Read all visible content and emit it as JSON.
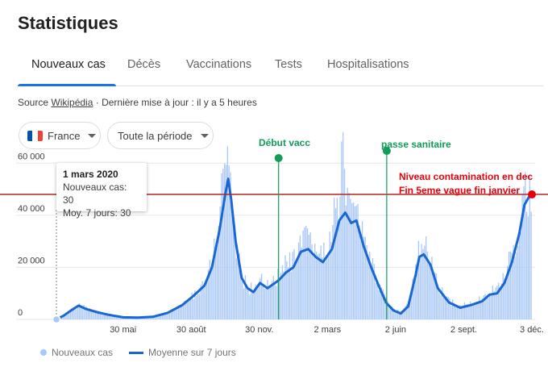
{
  "page": {
    "title": "Statistiques"
  },
  "tabs": [
    "Nouveaux cas",
    "Décès",
    "Vaccinations",
    "Tests",
    "Hospitalisations"
  ],
  "source": {
    "prefix": "Source",
    "link": "Wikipédia",
    "suffix": "· Dernière mise à jour : il y a 5 heures"
  },
  "filters": {
    "country": "France",
    "period": "Toute la période"
  },
  "tooltip": {
    "date": "1 mars 2020",
    "cases": "Nouveaux cas: 30",
    "avg": "Moy. 7 jours: 30"
  },
  "annotations": {
    "vacc": "Début vacc",
    "pass": "passe sanitaire",
    "level_line1": "Niveau contamination en dec",
    "level_line2": "Fin 5eme vague fin janvier",
    "vacc_color": "#0f9d58",
    "level_color": "#e8000b"
  },
  "legend": {
    "bars": "Nouveaux cas",
    "line": "Moyenne sur 7 jours"
  },
  "colors": {
    "bars": "#a8c7fa",
    "line": "#1967d2",
    "accent": "#1a73e8",
    "grid": "#e6e6e6",
    "ref_line": "#b3261e"
  },
  "chart_data": {
    "type": "line",
    "ylim": [
      0,
      70000
    ],
    "yticks": [
      0,
      20000,
      40000,
      60000
    ],
    "ytick_labels": [
      "0",
      "20 000",
      "40 000",
      "60 000"
    ],
    "xtick_labels": [
      "30 mai",
      "30 août",
      "30 nov.",
      "2 mars",
      "2 juin",
      "2 sept.",
      "3 déc."
    ],
    "xtick_days": [
      90,
      182,
      274,
      366,
      458,
      550,
      642
    ],
    "x_max_day": 642,
    "reference_level": 48000,
    "annotation_days": {
      "vacc": 300,
      "pass": 446
    },
    "series": [
      {
        "name": "Moyenne sur 7 jours",
        "points": [
          [
            0,
            30
          ],
          [
            10,
            1500
          ],
          [
            20,
            3500
          ],
          [
            30,
            5300
          ],
          [
            40,
            4000
          ],
          [
            55,
            2800
          ],
          [
            70,
            1800
          ],
          [
            90,
            800
          ],
          [
            110,
            700
          ],
          [
            130,
            1000
          ],
          [
            150,
            2500
          ],
          [
            170,
            5500
          ],
          [
            185,
            9000
          ],
          [
            200,
            13000
          ],
          [
            210,
            20000
          ],
          [
            220,
            34000
          ],
          [
            228,
            48000
          ],
          [
            232,
            54000
          ],
          [
            236,
            46000
          ],
          [
            242,
            30000
          ],
          [
            250,
            16000
          ],
          [
            258,
            12000
          ],
          [
            266,
            10500
          ],
          [
            275,
            14000
          ],
          [
            285,
            12000
          ],
          [
            300,
            15000
          ],
          [
            310,
            18000
          ],
          [
            320,
            20000
          ],
          [
            330,
            26000
          ],
          [
            340,
            27000
          ],
          [
            350,
            24000
          ],
          [
            360,
            22000
          ],
          [
            372,
            27000
          ],
          [
            382,
            38000
          ],
          [
            390,
            41000
          ],
          [
            398,
            37000
          ],
          [
            405,
            38000
          ],
          [
            415,
            28000
          ],
          [
            425,
            20000
          ],
          [
            435,
            13000
          ],
          [
            445,
            6500
          ],
          [
            455,
            3500
          ],
          [
            465,
            2300
          ],
          [
            475,
            5000
          ],
          [
            485,
            17000
          ],
          [
            490,
            24000
          ],
          [
            496,
            25000
          ],
          [
            505,
            21000
          ],
          [
            515,
            12000
          ],
          [
            530,
            6500
          ],
          [
            545,
            4500
          ],
          [
            560,
            5500
          ],
          [
            575,
            7000
          ],
          [
            585,
            9500
          ],
          [
            595,
            10000
          ],
          [
            605,
            14000
          ],
          [
            615,
            22000
          ],
          [
            625,
            33000
          ],
          [
            632,
            44000
          ],
          [
            638,
            47000
          ],
          [
            642,
            49000
          ]
        ]
      },
      {
        "name": "Nouveaux cas",
        "points": [
          [
            0,
            30
          ],
          [
            10,
            1500
          ],
          [
            20,
            3500
          ],
          [
            30,
            5800
          ],
          [
            40,
            4200
          ],
          [
            55,
            2800
          ],
          [
            70,
            1800
          ],
          [
            90,
            800
          ],
          [
            110,
            700
          ],
          [
            130,
            1000
          ],
          [
            150,
            2500
          ],
          [
            170,
            5500
          ],
          [
            185,
            9500
          ],
          [
            200,
            14000
          ],
          [
            210,
            22000
          ],
          [
            220,
            40000
          ],
          [
            225,
            58000
          ],
          [
            228,
            61000
          ],
          [
            232,
            66000
          ],
          [
            236,
            50000
          ],
          [
            242,
            30000
          ],
          [
            250,
            16000
          ],
          [
            258,
            13000
          ],
          [
            266,
            11000
          ],
          [
            275,
            16000
          ],
          [
            285,
            13000
          ],
          [
            300,
            17000
          ],
          [
            310,
            21000
          ],
          [
            320,
            22000
          ],
          [
            330,
            29000
          ],
          [
            340,
            30000
          ],
          [
            350,
            27000
          ],
          [
            360,
            25000
          ],
          [
            372,
            32000
          ],
          [
            378,
            47000
          ],
          [
            382,
            48000
          ],
          [
            386,
            64000
          ],
          [
            390,
            46000
          ],
          [
            394,
            62000
          ],
          [
            398,
            40000
          ],
          [
            405,
            42000
          ],
          [
            415,
            30000
          ],
          [
            425,
            22000
          ],
          [
            435,
            14000
          ],
          [
            445,
            7000
          ],
          [
            455,
            4000
          ],
          [
            465,
            2600
          ],
          [
            475,
            6000
          ],
          [
            485,
            19000
          ],
          [
            490,
            27000
          ],
          [
            496,
            28000
          ],
          [
            505,
            23000
          ],
          [
            515,
            13000
          ],
          [
            530,
            7000
          ],
          [
            545,
            5000
          ],
          [
            560,
            6000
          ],
          [
            575,
            8000
          ],
          [
            585,
            10500
          ],
          [
            595,
            11000
          ],
          [
            605,
            16000
          ],
          [
            615,
            26000
          ],
          [
            625,
            37000
          ],
          [
            632,
            46000
          ],
          [
            638,
            49000
          ],
          [
            642,
            50000
          ]
        ]
      }
    ]
  }
}
